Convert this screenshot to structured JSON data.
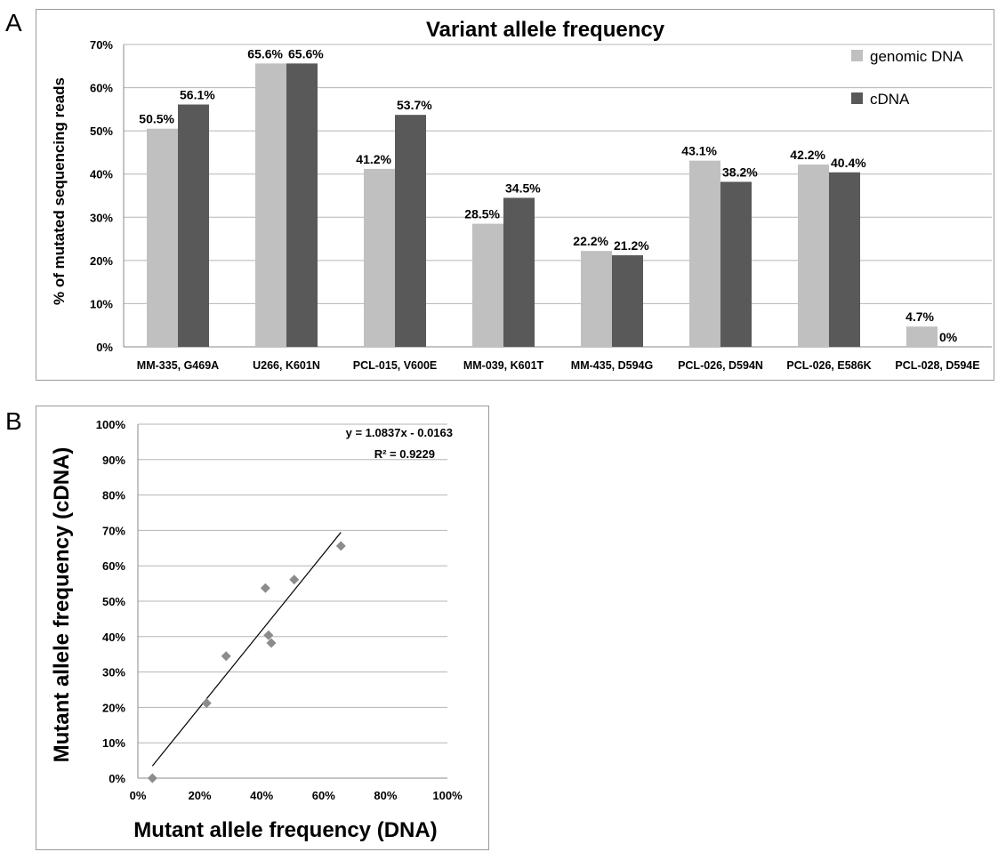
{
  "panels": {
    "a": "A",
    "b": "B"
  },
  "chart_data": [
    {
      "type": "bar",
      "title": "Variant allele frequency",
      "xlabel": "",
      "ylabel": "% of mutated sequencing reads",
      "ylim": [
        0,
        0.7
      ],
      "yticks": [
        "0%",
        "10%",
        "20%",
        "30%",
        "40%",
        "50%",
        "60%",
        "70%"
      ],
      "grid": true,
      "legend_position": "top-right",
      "categories": [
        "MM-335, G469A",
        "U266, K601N",
        "PCL-015, V600E",
        "MM-039, K601T",
        "MM-435, D594G",
        "PCL-026, D594N",
        "PCL-026, E586K",
        "PCL-028, D594E"
      ],
      "series": [
        {
          "name": "genomic DNA",
          "color": "#c0c0c0",
          "values": [
            0.505,
            0.656,
            0.412,
            0.285,
            0.222,
            0.431,
            0.422,
            0.047
          ],
          "labels": [
            "50.5%",
            "65.6%",
            "41.2%",
            "28.5%",
            "22.2%",
            "43.1%",
            "42.2%",
            "4.7%"
          ]
        },
        {
          "name": "cDNA",
          "color": "#595959",
          "values": [
            0.561,
            0.656,
            0.537,
            0.345,
            0.212,
            0.382,
            0.404,
            0.0
          ],
          "labels": [
            "56.1%",
            "65.6%",
            "53.7%",
            "34.5%",
            "21.2%",
            "38.2%",
            "40.4%",
            "0%"
          ]
        }
      ]
    },
    {
      "type": "scatter",
      "title": "",
      "xlabel": "Mutant allele frequency (DNA)",
      "ylabel": "Mutant allele frequency (cDNA)",
      "xlim": [
        0,
        1
      ],
      "ylim": [
        0,
        1
      ],
      "xticks": [
        "0%",
        "20%",
        "40%",
        "60%",
        "80%",
        "100%"
      ],
      "yticks": [
        "0%",
        "10%",
        "20%",
        "30%",
        "40%",
        "50%",
        "60%",
        "70%",
        "80%",
        "90%",
        "100%"
      ],
      "grid": true,
      "point_color": "#8c8c8c",
      "points": [
        {
          "x": 0.505,
          "y": 0.561
        },
        {
          "x": 0.656,
          "y": 0.656
        },
        {
          "x": 0.412,
          "y": 0.537
        },
        {
          "x": 0.285,
          "y": 0.345
        },
        {
          "x": 0.222,
          "y": 0.212
        },
        {
          "x": 0.431,
          "y": 0.382
        },
        {
          "x": 0.422,
          "y": 0.404
        },
        {
          "x": 0.047,
          "y": 0.0
        }
      ],
      "trendline": {
        "slope": 1.0837,
        "intercept": -0.0163,
        "x_range": [
          0.047,
          0.656
        ],
        "equation": "y = 1.0837x - 0.0163",
        "r_squared": "R² = 0.9229"
      }
    }
  ]
}
